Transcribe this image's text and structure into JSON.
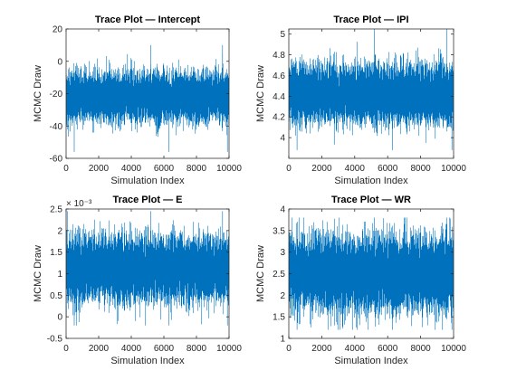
{
  "chart_data": [
    {
      "type": "line",
      "title": "Trace Plot — Intercept",
      "xlabel": "Simulation Index",
      "ylabel": "MCMC Draw",
      "xlim": [
        0,
        10000
      ],
      "ylim": [
        -60,
        20
      ],
      "xticks": [
        "0",
        "2000",
        "4000",
        "6000",
        "8000",
        "10000"
      ],
      "xtick_values": [
        0,
        2000,
        4000,
        6000,
        8000,
        10000
      ],
      "yticks": [
        "-60",
        "-40",
        "-20",
        "0",
        "20"
      ],
      "ytick_values": [
        -60,
        -40,
        -20,
        0,
        20
      ],
      "exponent": "",
      "series_color": "#0072BD",
      "trace": {
        "n": 10000,
        "mean": -22,
        "std": 7,
        "min": -56,
        "max": 10
      }
    },
    {
      "type": "line",
      "title": "Trace Plot — IPI",
      "xlabel": "Simulation Index",
      "ylabel": "MCMC Draw",
      "xlim": [
        0,
        10000
      ],
      "ylim": [
        3.8,
        5.05
      ],
      "xticks": [
        "0",
        "2000",
        "4000",
        "6000",
        "8000",
        "10000"
      ],
      "xtick_values": [
        0,
        2000,
        4000,
        6000,
        8000,
        10000
      ],
      "yticks": [
        "4",
        "4.2",
        "4.4",
        "4.6",
        "4.8",
        "5"
      ],
      "ytick_values": [
        4,
        4.2,
        4.4,
        4.6,
        4.8,
        5
      ],
      "exponent": "",
      "series_color": "#0072BD",
      "trace": {
        "n": 10000,
        "mean": 4.42,
        "std": 0.13,
        "min": 3.88,
        "max": 5.05
      }
    },
    {
      "type": "line",
      "title": "Trace Plot — E",
      "xlabel": "Simulation Index",
      "ylabel": "MCMC Draw",
      "xlim": [
        0,
        10000
      ],
      "ylim": [
        -0.5,
        2.5
      ],
      "xticks": [
        "0",
        "2000",
        "4000",
        "6000",
        "8000",
        "10000"
      ],
      "xtick_values": [
        0,
        2000,
        4000,
        6000,
        8000,
        10000
      ],
      "yticks": [
        "-0.5",
        "0",
        "0.5",
        "1",
        "1.5",
        "2",
        "2.5"
      ],
      "ytick_values": [
        -0.5,
        0,
        0.5,
        1,
        1.5,
        2,
        2.5
      ],
      "exponent": "× 10⁻³",
      "series_color": "#0072BD",
      "trace": {
        "n": 10000,
        "mean": 1.1,
        "std": 0.35,
        "min": -0.2,
        "max": 2.45
      }
    },
    {
      "type": "line",
      "title": "Trace Plot — WR",
      "xlabel": "Simulation Index",
      "ylabel": "MCMC Draw",
      "xlim": [
        0,
        10000
      ],
      "ylim": [
        1,
        4
      ],
      "xticks": [
        "0",
        "2000",
        "4000",
        "6000",
        "8000",
        "10000"
      ],
      "xtick_values": [
        0,
        2000,
        4000,
        6000,
        8000,
        10000
      ],
      "yticks": [
        "1",
        "1.5",
        "2",
        "2.5",
        "3",
        "3.5",
        "4"
      ],
      "ytick_values": [
        1,
        1.5,
        2,
        2.5,
        3,
        3.5,
        4
      ],
      "exponent": "",
      "series_color": "#0072BD",
      "trace": {
        "n": 10000,
        "mean": 2.5,
        "std": 0.4,
        "min": 1.2,
        "max": 3.8
      }
    }
  ]
}
